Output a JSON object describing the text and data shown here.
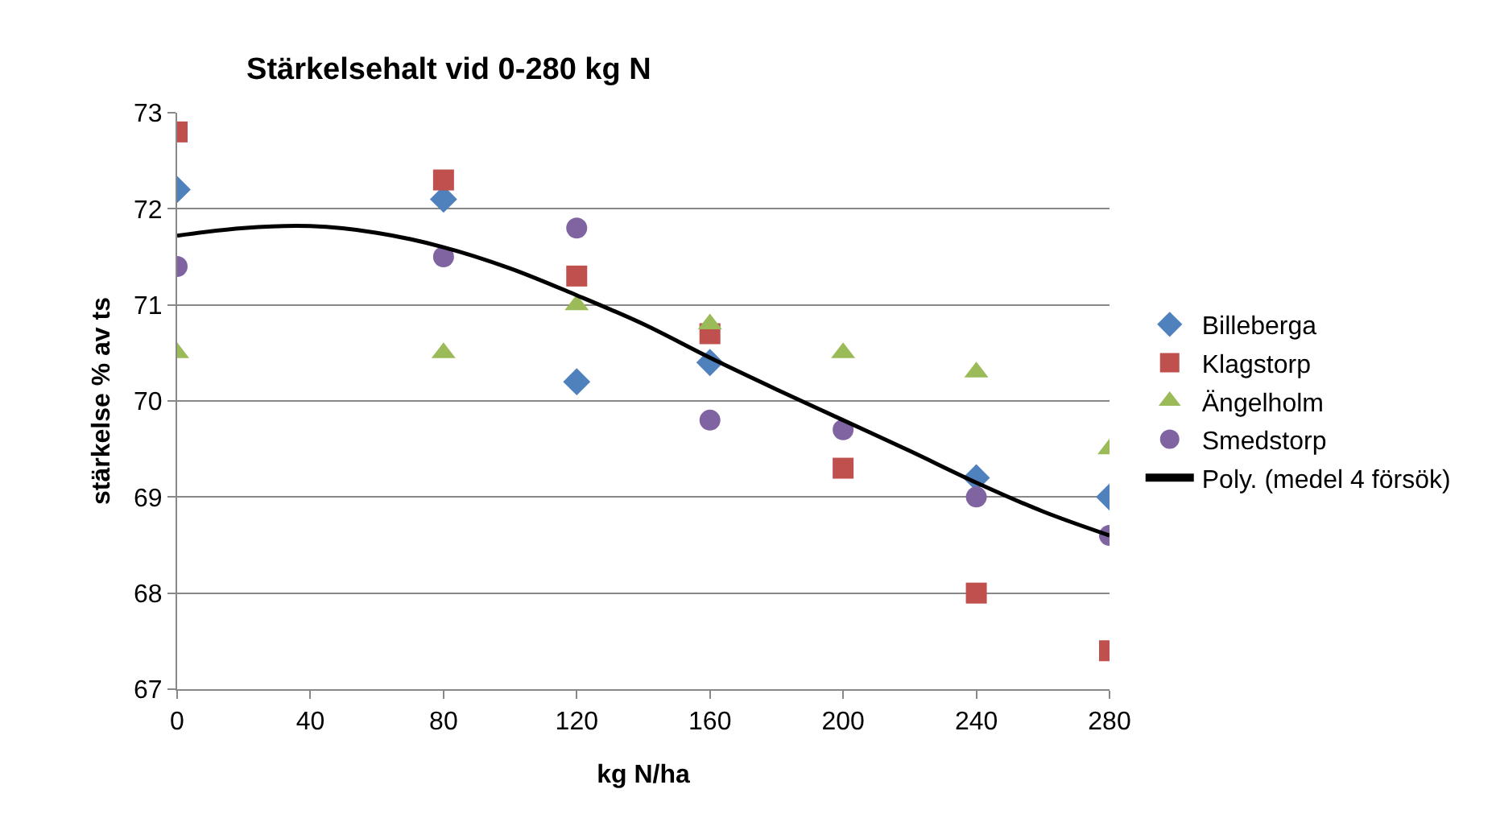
{
  "chart_data": {
    "type": "scatter",
    "title": "Stärkelsehalt vid 0-280 kg N",
    "xlabel": "kg N/ha",
    "ylabel": "stärkelse % av ts",
    "x": [
      0,
      80,
      120,
      160,
      200,
      240,
      280
    ],
    "xlim": [
      0,
      280
    ],
    "xticks": [
      0,
      40,
      80,
      120,
      160,
      200,
      240,
      280
    ],
    "ylim": [
      67,
      73
    ],
    "yticks": [
      67,
      68,
      69,
      70,
      71,
      72,
      73
    ],
    "grid": "y",
    "legend": "right",
    "series": [
      {
        "name": "Billeberga",
        "color": "#4f81bd",
        "marker": "diamond",
        "values": [
          72.2,
          72.1,
          70.2,
          70.4,
          null,
          69.2,
          69.0
        ]
      },
      {
        "name": "Klagstorp",
        "color": "#c0504d",
        "marker": "square",
        "values": [
          72.8,
          72.3,
          71.3,
          70.7,
          69.3,
          68.0,
          67.4
        ]
      },
      {
        "name": "Ängelholm",
        "color": "#9bbb59",
        "marker": "triangle",
        "values": [
          70.5,
          70.5,
          71.0,
          70.8,
          70.5,
          70.3,
          69.5
        ]
      },
      {
        "name": "Smedstorp",
        "color": "#8064a2",
        "marker": "circle",
        "values": [
          71.4,
          71.5,
          71.8,
          69.8,
          69.7,
          69.0,
          68.6
        ]
      },
      {
        "name": "Poly. (medel 4 försök)",
        "type": "line",
        "color": "#000000",
        "marker": "none",
        "line_style": "solid",
        "x": [
          0,
          20,
          40,
          60,
          80,
          100,
          120,
          140,
          160,
          180,
          200,
          220,
          240,
          260,
          280
        ],
        "values": [
          71.72,
          71.8,
          71.82,
          71.75,
          71.6,
          71.38,
          71.1,
          70.8,
          70.45,
          70.12,
          69.8,
          69.48,
          69.15,
          68.85,
          68.6
        ]
      }
    ]
  }
}
